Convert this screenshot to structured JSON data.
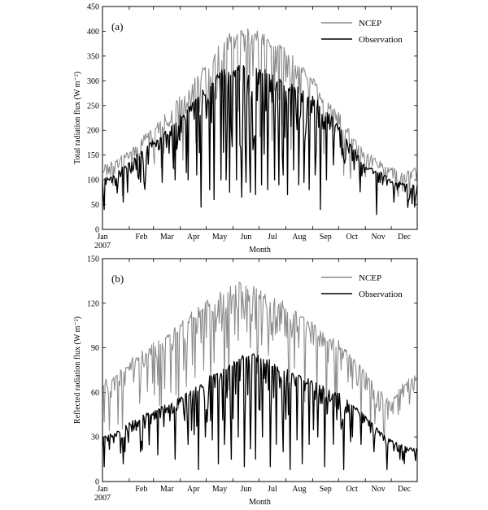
{
  "chart_data": [
    {
      "type": "line",
      "panel_label": "(a)",
      "ylabel": "Total radiation flux (W m⁻²)",
      "xlabel": "Month",
      "x_tick_labels": [
        "Jan",
        "Feb",
        "Mar",
        "Apr",
        "May",
        "Jun",
        "Jul",
        "Aug",
        "Sep",
        "Oct",
        "Nov",
        "Dec"
      ],
      "x_tick_days": [
        1,
        32,
        60,
        91,
        121,
        152,
        182,
        213,
        244,
        274,
        305,
        335
      ],
      "x_year_label": "2007",
      "xlim": [
        1,
        365
      ],
      "ylim": [
        0,
        450
      ],
      "y_ticks": [
        0,
        50,
        100,
        150,
        200,
        250,
        300,
        350,
        400,
        450
      ],
      "legend_position": "top-right",
      "series": [
        {
          "name": "NCEP",
          "color": "#8c8c8c",
          "envelope_days": [
            1,
            15,
            32,
            46,
            60,
            75,
            91,
            105,
            121,
            135,
            150,
            160,
            170,
            182,
            195,
            213,
            228,
            244,
            258,
            274,
            290,
            305,
            320,
            335,
            350,
            365
          ],
          "envelope_values": [
            130,
            140,
            160,
            185,
            210,
            240,
            270,
            300,
            335,
            370,
            400,
            410,
            405,
            400,
            390,
            370,
            340,
            310,
            270,
            240,
            190,
            160,
            140,
            125,
            120,
            125
          ],
          "dips": [
            [
              110,
              250
            ],
            [
              125,
              230
            ],
            [
              140,
              280
            ],
            [
              152,
              270
            ],
            [
              160,
              300
            ],
            [
              168,
              260
            ],
            [
              175,
              310
            ],
            [
              190,
              250
            ],
            [
              200,
              280
            ],
            [
              210,
              290
            ],
            [
              220,
              300
            ],
            [
              230,
              250
            ],
            [
              240,
              230
            ],
            [
              250,
              260
            ]
          ]
        },
        {
          "name": "Observation",
          "color": "#000000",
          "envelope_days": [
            1,
            15,
            32,
            46,
            60,
            75,
            91,
            105,
            121,
            135,
            150,
            160,
            170,
            182,
            195,
            213,
            228,
            244,
            258,
            274,
            290,
            305,
            320,
            335,
            350,
            365
          ],
          "envelope_values": [
            105,
            110,
            140,
            160,
            180,
            200,
            230,
            260,
            290,
            320,
            330,
            340,
            320,
            330,
            320,
            300,
            290,
            270,
            250,
            210,
            170,
            130,
            120,
            100,
            95,
            90
          ],
          "dips": [
            [
              3,
              40
            ],
            [
              25,
              55
            ],
            [
              45,
              95
            ],
            [
              70,
              95
            ],
            [
              85,
              100
            ],
            [
              100,
              100
            ],
            [
              110,
              110
            ],
            [
              115,
              45
            ],
            [
              125,
              80
            ],
            [
              130,
              60
            ],
            [
              138,
              100
            ],
            [
              144,
              100
            ],
            [
              148,
              75
            ],
            [
              156,
              100
            ],
            [
              162,
              65
            ],
            [
              167,
              95
            ],
            [
              172,
              75
            ],
            [
              178,
              70
            ],
            [
              185,
              90
            ],
            [
              192,
              80
            ],
            [
              200,
              100
            ],
            [
              205,
              90
            ],
            [
              210,
              110
            ],
            [
              215,
              70
            ],
            [
              222,
              120
            ],
            [
              228,
              90
            ],
            [
              234,
              95
            ],
            [
              240,
              80
            ],
            [
              247,
              110
            ],
            [
              253,
              40
            ],
            [
              260,
              100
            ],
            [
              268,
              130
            ],
            [
              278,
              150
            ],
            [
              292,
              120
            ],
            [
              318,
              30
            ],
            [
              338,
              55
            ],
            [
              355,
              60
            ]
          ]
        }
      ]
    },
    {
      "type": "line",
      "panel_label": "(b)",
      "ylabel": "Reflected radiation flux (W m⁻²)",
      "xlabel": "Month",
      "x_tick_labels": [
        "Jan",
        "Feb",
        "Mar",
        "Apr",
        "May",
        "Jun",
        "Jul",
        "Aug",
        "Sep",
        "Oct",
        "Nov",
        "Dec"
      ],
      "x_tick_days": [
        1,
        32,
        60,
        91,
        121,
        152,
        182,
        213,
        244,
        274,
        305,
        335
      ],
      "x_year_label": "2007",
      "xlim": [
        1,
        365
      ],
      "ylim": [
        0,
        150
      ],
      "y_ticks": [
        0,
        30,
        60,
        90,
        120,
        150
      ],
      "legend_position": "top-right",
      "series": [
        {
          "name": "NCEP",
          "color": "#8c8c8c",
          "envelope_days": [
            1,
            15,
            32,
            46,
            60,
            75,
            91,
            105,
            121,
            135,
            150,
            160,
            170,
            182,
            195,
            213,
            228,
            244,
            258,
            274,
            290,
            305,
            320,
            335,
            350,
            365
          ],
          "envelope_values": [
            68,
            72,
            82,
            88,
            95,
            100,
            108,
            115,
            122,
            128,
            132,
            135,
            133,
            130,
            126,
            122,
            116,
            108,
            100,
            95,
            85,
            75,
            62,
            55,
            68,
            72
          ],
          "dips": [
            [
              3,
              40
            ],
            [
              25,
              60
            ],
            [
              45,
              65
            ],
            [
              65,
              65
            ],
            [
              80,
              60
            ],
            [
              95,
              75
            ],
            [
              108,
              70
            ],
            [
              118,
              75
            ],
            [
              130,
              80
            ],
            [
              145,
              90
            ],
            [
              158,
              95
            ],
            [
              172,
              90
            ],
            [
              185,
              92
            ],
            [
              198,
              95
            ],
            [
              212,
              98
            ],
            [
              228,
              90
            ],
            [
              245,
              92
            ],
            [
              262,
              80
            ],
            [
              300,
              40
            ],
            [
              318,
              50
            ],
            [
              345,
              48
            ]
          ]
        },
        {
          "name": "Observation",
          "color": "#000000",
          "envelope_days": [
            1,
            15,
            32,
            46,
            60,
            75,
            91,
            105,
            121,
            135,
            150,
            160,
            170,
            182,
            195,
            213,
            228,
            244,
            258,
            274,
            290,
            305,
            320,
            335,
            350,
            365
          ],
          "envelope_values": [
            30,
            33,
            40,
            45,
            48,
            52,
            57,
            62,
            70,
            75,
            80,
            85,
            88,
            85,
            82,
            76,
            72,
            68,
            65,
            60,
            52,
            45,
            35,
            28,
            24,
            22
          ],
          "dips": [
            [
              3,
              10
            ],
            [
              25,
              12
            ],
            [
              45,
              20
            ],
            [
              65,
              18
            ],
            [
              85,
              15
            ],
            [
              100,
              25
            ],
            [
              112,
              8
            ],
            [
              120,
              30
            ],
            [
              128,
              28
            ],
            [
              135,
              12
            ],
            [
              142,
              25
            ],
            [
              150,
              15
            ],
            [
              158,
              30
            ],
            [
              165,
              10
            ],
            [
              172,
              22
            ],
            [
              178,
              15
            ],
            [
              186,
              30
            ],
            [
              195,
              10
            ],
            [
              202,
              25
            ],
            [
              210,
              20
            ],
            [
              218,
              8
            ],
            [
              226,
              28
            ],
            [
              232,
              12
            ],
            [
              240,
              25
            ],
            [
              250,
              30
            ],
            [
              258,
              10
            ],
            [
              268,
              25
            ],
            [
              280,
              8
            ],
            [
              290,
              30
            ],
            [
              300,
              25
            ],
            [
              315,
              20
            ],
            [
              330,
              8
            ],
            [
              345,
              15
            ]
          ]
        }
      ]
    }
  ]
}
